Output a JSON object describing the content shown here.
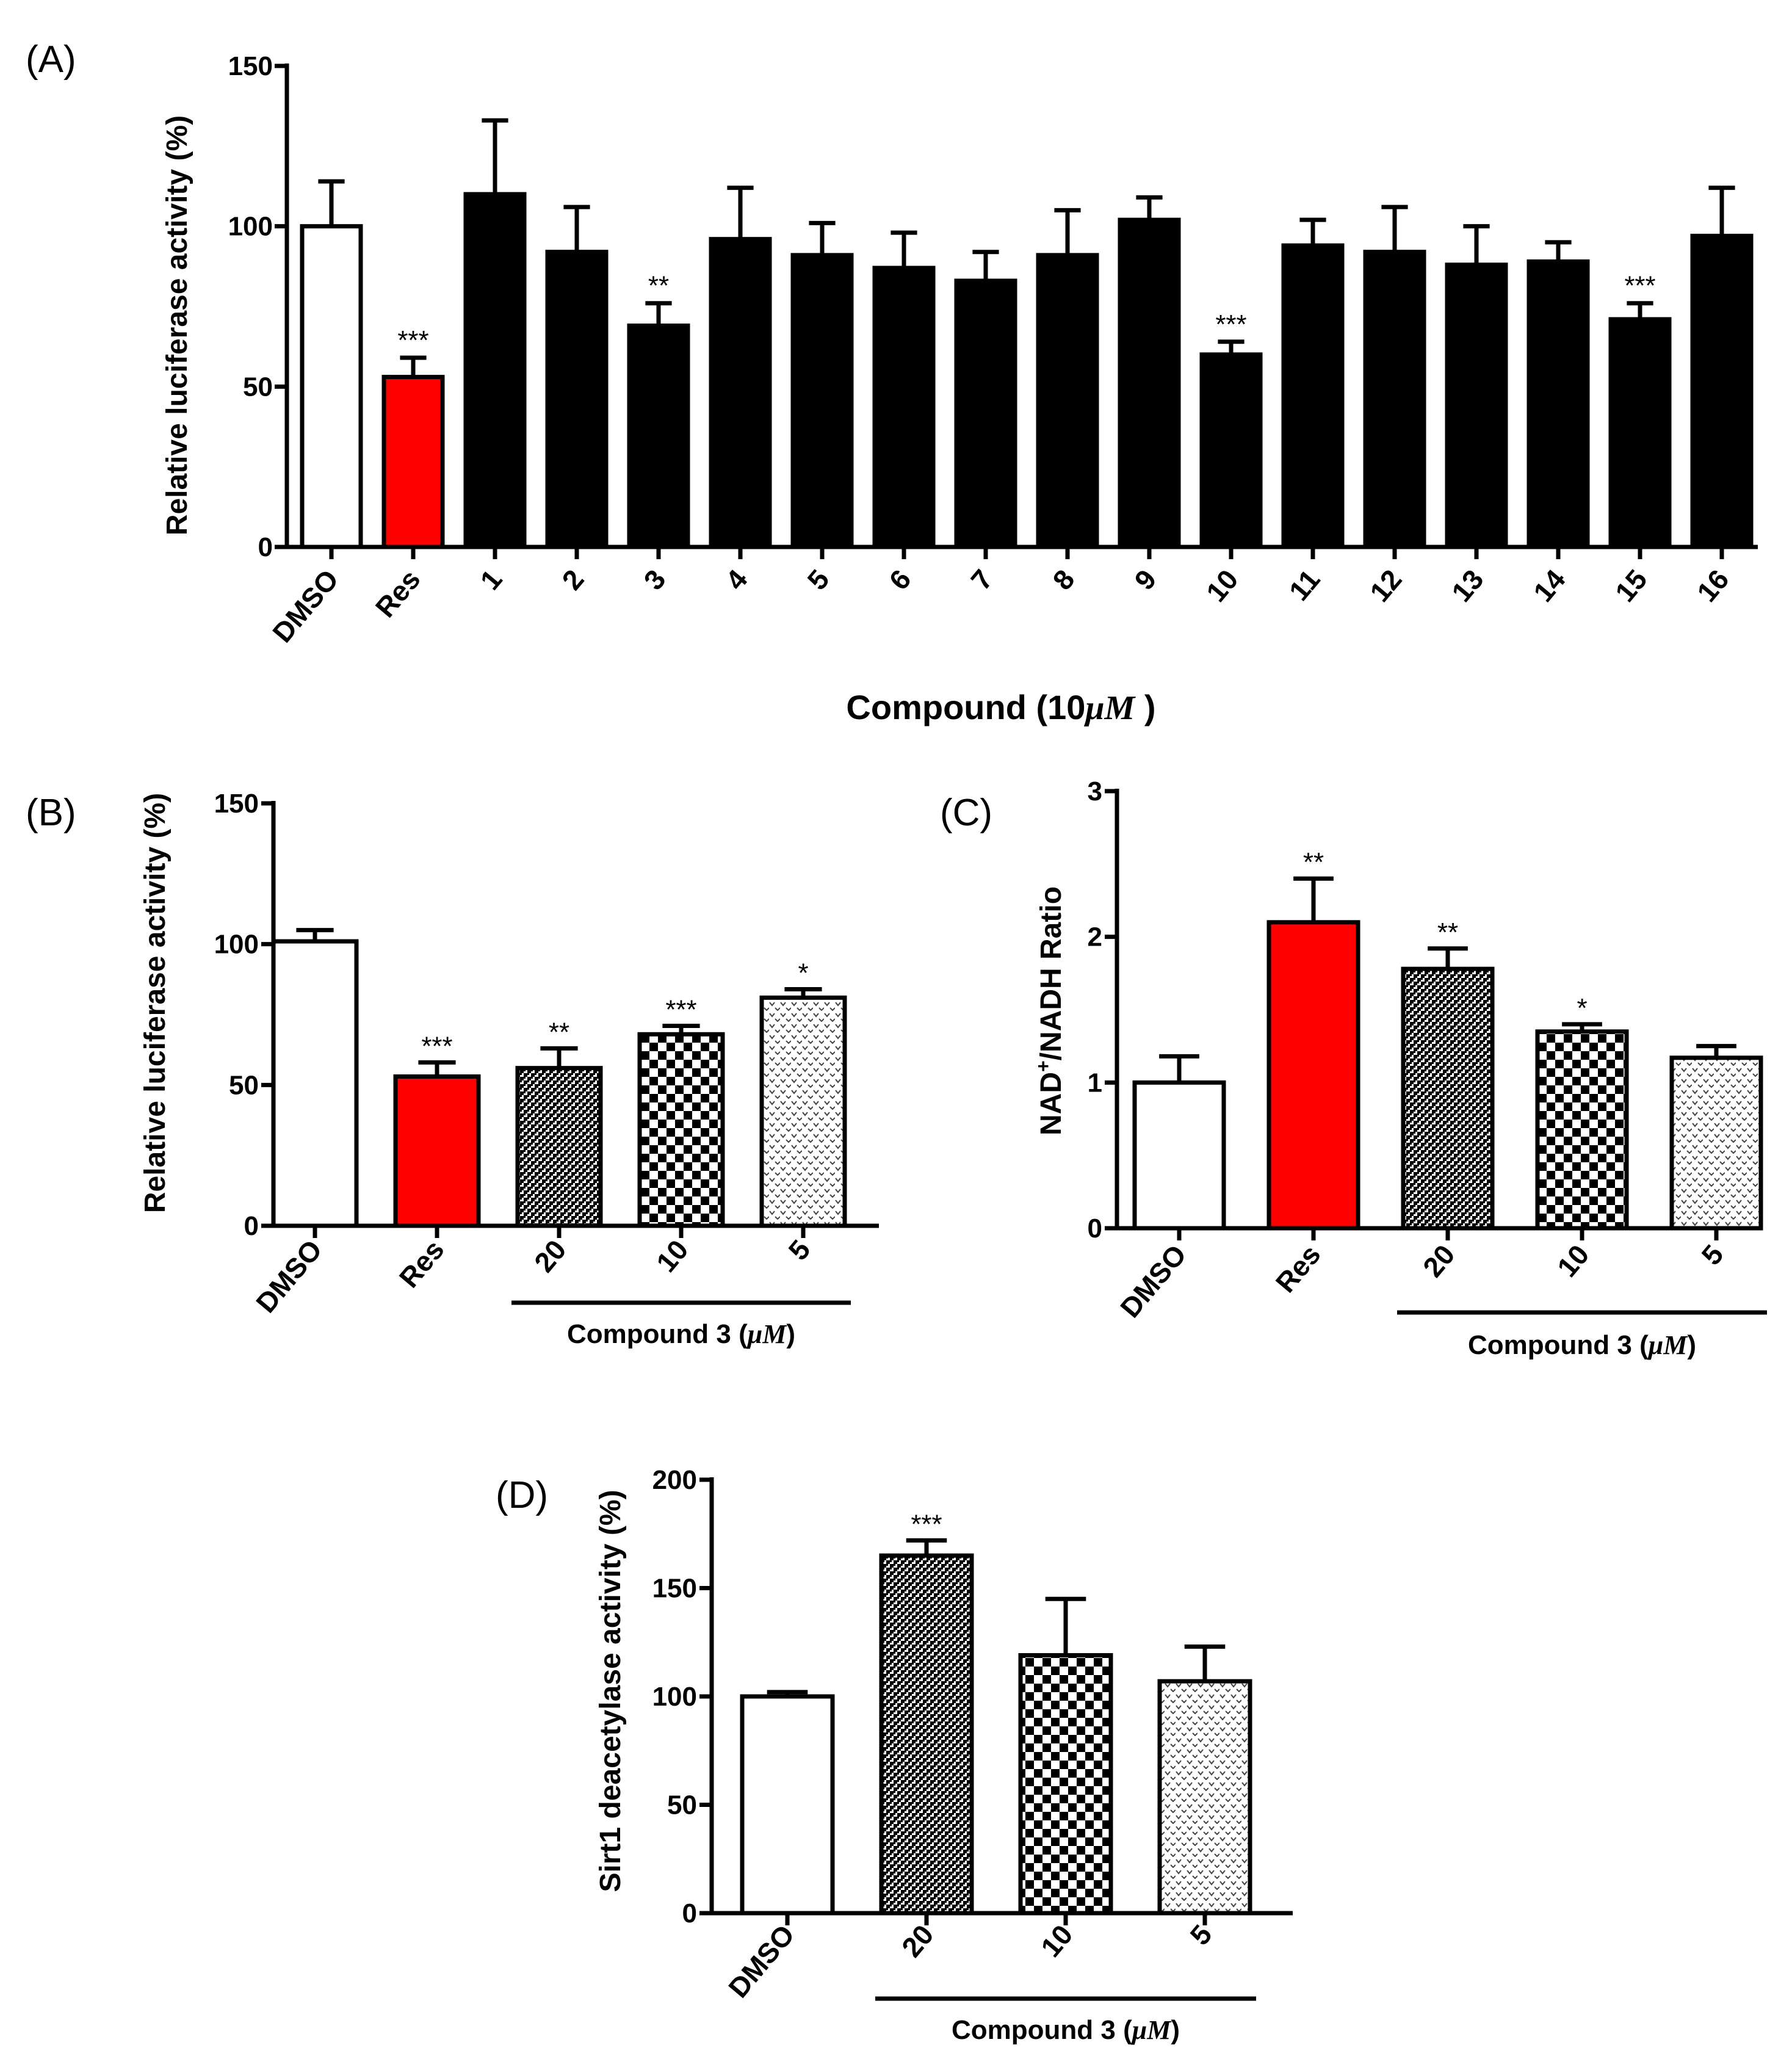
{
  "chart_data": [
    {
      "panel": "(A)",
      "type": "bar",
      "title": "",
      "ylabel": "Relative luciferase activity (%)",
      "xlabel": "Compound (10μM )",
      "xlabel_parts": {
        "prefix": "Compound (10",
        "unit": "μM",
        "suffix": " )"
      },
      "ylim": [
        0,
        150
      ],
      "yticks": [
        "0",
        "50",
        "100",
        "150"
      ],
      "categories": [
        "DMSO",
        "Res",
        "1",
        "2",
        "3",
        "4",
        "5",
        "6",
        "7",
        "8",
        "9",
        "10",
        "11",
        "12",
        "13",
        "14",
        "15",
        "16"
      ],
      "values": [
        100,
        53,
        110,
        92,
        69,
        96,
        91,
        87,
        83,
        91,
        102,
        60,
        94,
        92,
        88,
        89,
        71,
        97
      ],
      "errors": [
        14,
        6,
        23,
        14,
        7,
        16,
        10,
        11,
        9,
        14,
        7,
        4,
        8,
        14,
        12,
        6,
        5,
        15
      ],
      "significance": [
        "",
        "***",
        "",
        "",
        "**",
        "",
        "",
        "",
        "",
        "",
        "",
        "***",
        "",
        "",
        "",
        "",
        "***",
        ""
      ],
      "fills": [
        "white",
        "red",
        "black",
        "black",
        "black",
        "black",
        "black",
        "black",
        "black",
        "black",
        "black",
        "black",
        "black",
        "black",
        "black",
        "black",
        "black",
        "black"
      ]
    },
    {
      "panel": "(B)",
      "type": "bar",
      "title": "",
      "ylabel": "Relative luciferase activity (%)",
      "ylim": [
        0,
        150
      ],
      "yticks": [
        "0",
        "50",
        "100",
        "150"
      ],
      "categories": [
        "DMSO",
        "Res",
        "20",
        "10",
        "5"
      ],
      "values": [
        101,
        53,
        56,
        68,
        81
      ],
      "errors": [
        4,
        5,
        7,
        3,
        3
      ],
      "significance": [
        "",
        "***",
        "**",
        "***",
        "*"
      ],
      "fills": [
        "white",
        "red",
        "dense",
        "checker",
        "sparse"
      ],
      "group_label": "Compound 3  (μM)",
      "group_parts": {
        "prefix": "Compound 3  (",
        "unit": "μM",
        "suffix": ")"
      },
      "group_span": [
        2,
        4
      ]
    },
    {
      "panel": "(C)",
      "type": "bar",
      "title": "",
      "ylabel": "NAD+/NADH Ratio",
      "ylabel_parts": {
        "a": "NAD",
        "sup": "+",
        "b": "/NADH Ratio"
      },
      "ylim": [
        0,
        3
      ],
      "yticks": [
        "0",
        "1",
        "2",
        "3"
      ],
      "categories": [
        "DMSO",
        "Res",
        "20",
        "10",
        "5"
      ],
      "values": [
        1.0,
        2.1,
        1.78,
        1.35,
        1.17
      ],
      "errors": [
        0.18,
        0.3,
        0.14,
        0.05,
        0.08
      ],
      "significance": [
        "",
        "**",
        "**",
        "*",
        ""
      ],
      "fills": [
        "white",
        "red",
        "dense",
        "checker",
        "sparse"
      ],
      "group_label": "Compound 3 (μM)",
      "group_parts": {
        "prefix": "Compound 3 (",
        "unit": "μM",
        "suffix": ")"
      },
      "group_span": [
        2,
        4
      ]
    },
    {
      "panel": "(D)",
      "type": "bar",
      "title": "",
      "ylabel": "Sirt1 deacetylase activity (%)",
      "ylim": [
        0,
        200
      ],
      "yticks": [
        "0",
        "50",
        "100",
        "150",
        "200"
      ],
      "categories": [
        "DMSO",
        "20",
        "10",
        "5"
      ],
      "values": [
        100,
        165,
        119,
        107
      ],
      "errors": [
        2,
        7,
        26,
        16
      ],
      "significance": [
        "",
        "***",
        "",
        ""
      ],
      "fills": [
        "white",
        "dense",
        "checker",
        "sparse"
      ],
      "group_label": "Compound 3 (μM)",
      "group_parts": {
        "prefix": "Compound 3 (",
        "unit": "μM",
        "suffix": ")"
      },
      "group_span": [
        1,
        3
      ]
    }
  ]
}
